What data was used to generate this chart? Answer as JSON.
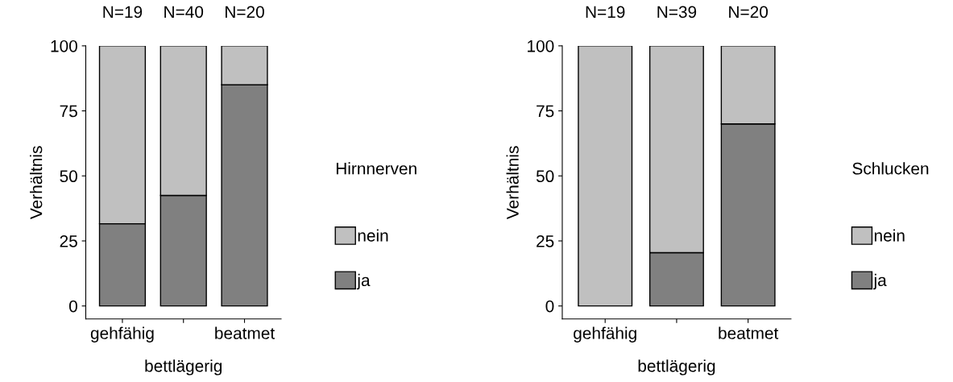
{
  "chart_data": [
    {
      "type": "bar",
      "stacked": true,
      "categories": [
        "gehfähig",
        "bettlägerig",
        "beatmet"
      ],
      "series": [
        {
          "name": "ja",
          "color": "#808080",
          "values": [
            31.6,
            42.5,
            85
          ]
        },
        {
          "name": "nein",
          "color": "#c0c0c0",
          "values": [
            68.4,
            57.5,
            15
          ]
        }
      ],
      "ylabel": "Verhältnis",
      "legend_title": "Hirnnerven",
      "legend": "right",
      "ylim": [
        -5,
        100
      ],
      "yticks": [
        0,
        25,
        50,
        75,
        100
      ],
      "annotations": [
        {
          "text": "N=19",
          "x": "gehfähig",
          "y": 100
        },
        {
          "text": "N=40",
          "x": "bettlägerig",
          "y": 100
        },
        {
          "text": "N=20",
          "x": "beatmet",
          "y": 100
        }
      ]
    },
    {
      "type": "bar",
      "stacked": true,
      "categories": [
        "gehfähig",
        "bettlägerig",
        "beatmet"
      ],
      "series": [
        {
          "name": "ja",
          "color": "#808080",
          "values": [
            0,
            20.5,
            70
          ]
        },
        {
          "name": "nein",
          "color": "#c0c0c0",
          "values": [
            100,
            79.5,
            30
          ]
        }
      ],
      "ylabel": "Verhältnis",
      "legend_title": "Schlucken",
      "legend": "right",
      "ylim": [
        -5,
        100
      ],
      "yticks": [
        0,
        25,
        50,
        75,
        100
      ],
      "annotations": [
        {
          "text": "N=19",
          "x": "gehfähig",
          "y": 100
        },
        {
          "text": "N=39",
          "x": "bettlägerig",
          "y": 100
        },
        {
          "text": "N=20",
          "x": "beatmet",
          "y": 100
        }
      ]
    }
  ]
}
